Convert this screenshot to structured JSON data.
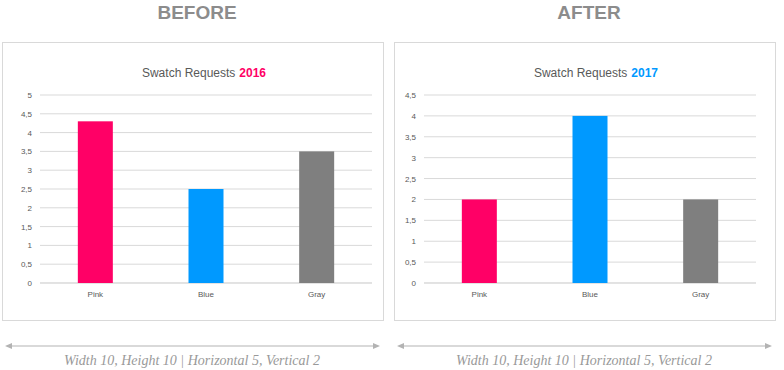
{
  "chart_data": [
    {
      "type": "bar",
      "title": "Swatch Requests",
      "subtitle": "2016",
      "annotations": [
        "BEFORE",
        "Width 10, Height 10 | Horizontal 5, Vertical 2"
      ],
      "categories": [
        "Pink",
        "Blue",
        "Gray"
      ],
      "values": [
        4.3,
        2.5,
        3.5
      ],
      "colors": [
        "#ff0066",
        "#0099ff",
        "#7f7f7f"
      ],
      "color": "#ff0066",
      "ylim": [
        0,
        5
      ],
      "yticks": [
        0,
        {
          "value": 0.5,
          "label": "0,5"
        },
        1,
        {
          "value": 1.5,
          "label": "1,5"
        },
        2,
        {
          "value": 2.5,
          "label": "2,5"
        },
        3,
        {
          "value": 3.5,
          "label": "3,5"
        },
        4,
        {
          "value": 4.5,
          "label": "4,5"
        },
        5
      ],
      "grid": true
    },
    {
      "type": "bar",
      "title": "Swatch Requests",
      "subtitle": "2017",
      "annotations": [
        "AFTER",
        "Width 10, Height 10 | Horizontal 5, Vertical 2"
      ],
      "categories": [
        "Pink",
        "Blue",
        "Gray"
      ],
      "values": [
        2,
        4,
        2
      ],
      "colors": [
        "#ff0066",
        "#0099ff",
        "#7f7f7f"
      ],
      "color": "#0099ff",
      "ylim": [
        0,
        4.5
      ],
      "yticks": [
        0,
        {
          "value": 0.5,
          "label": "0,5"
        },
        1,
        {
          "value": 1.5,
          "label": "1,5"
        },
        2,
        {
          "value": 2.5,
          "label": "2,5"
        },
        3,
        {
          "value": 3.5,
          "label": "3,5"
        },
        4,
        {
          "value": 4.5,
          "label": "4,5"
        }
      ],
      "grid": true
    }
  ]
}
